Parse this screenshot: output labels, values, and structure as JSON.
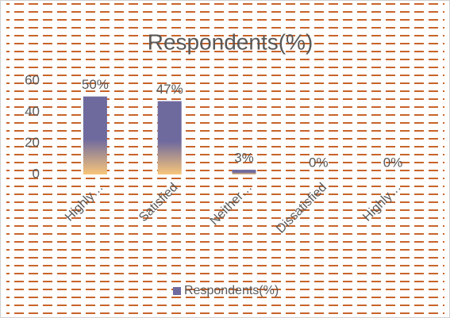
{
  "chart_data": {
    "type": "bar",
    "title": "Respondents(%)",
    "categories": [
      "Highly…",
      "Satisfied",
      "Neither…",
      "Dissatisfied",
      "Highly…"
    ],
    "series": [
      {
        "name": "Respondents(%)",
        "color": "#6f6a9e",
        "values": [
          50,
          47,
          3,
          0,
          0
        ],
        "value_labels": [
          "50%",
          "47%",
          "3%",
          "0%",
          "0%"
        ]
      }
    ],
    "ylim": [
      0,
      60
    ],
    "yticks": [
      0,
      20,
      40,
      60
    ],
    "legend": "bottom"
  }
}
